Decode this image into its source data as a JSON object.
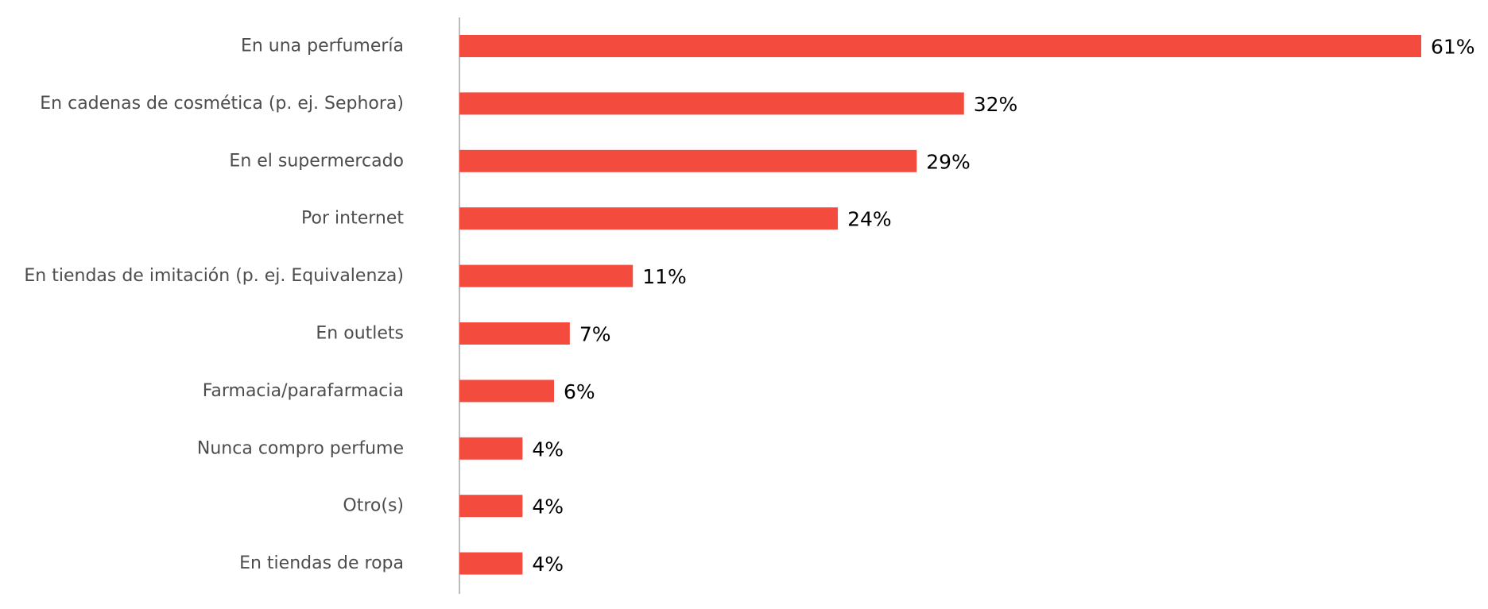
{
  "chart_data": {
    "type": "bar",
    "orientation": "horizontal",
    "categories": [
      "En una perfumería",
      "En cadenas de cosmética (p. ej. Sephora)",
      "En el supermercado",
      "Por internet",
      "En tiendas de imitación (p. ej. Equivalenza)",
      "En outlets",
      "Farmacia/parafarmacia",
      "Nunca compro perfume",
      "Otro(s)",
      "En tiendas de ropa"
    ],
    "values": [
      61,
      32,
      29,
      24,
      11,
      7,
      6,
      4,
      4,
      4
    ],
    "value_labels": [
      "61%",
      "32%",
      "29%",
      "24%",
      "11%",
      "7%",
      "6%",
      "4%",
      "4%",
      "4%"
    ],
    "unit": "%",
    "xlim": [
      0,
      61
    ],
    "grid": false,
    "legend": "none",
    "bar_color": "#f44b3f",
    "axis_color": "#a6a6a6",
    "category_label_color": "#4d4d4d",
    "value_label_color": "#000000"
  }
}
